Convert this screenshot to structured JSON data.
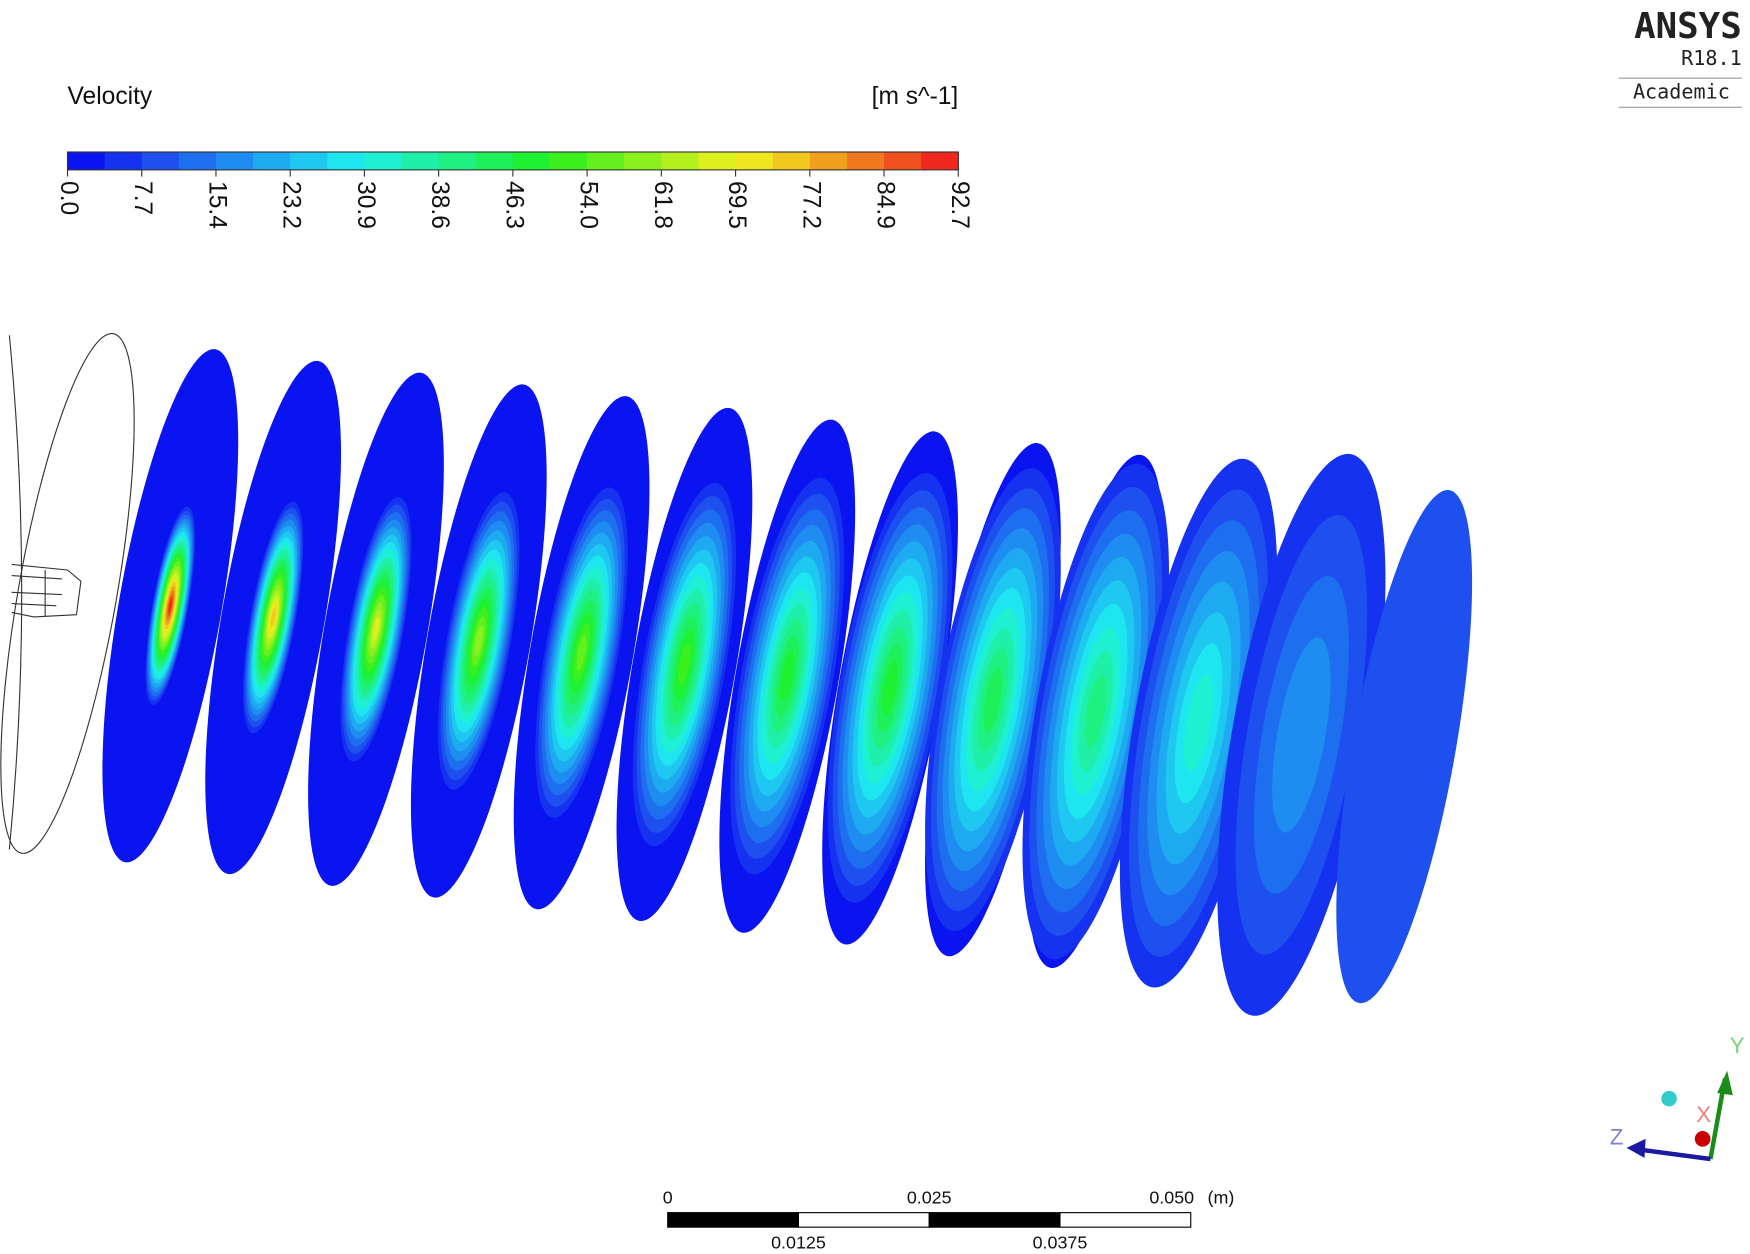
{
  "legend": {
    "title": "Velocity",
    "unit": "[m s^-1]",
    "ticks": [
      "0.0",
      "7.7",
      "15.4",
      "23.2",
      "30.9",
      "38.6",
      "46.3",
      "54.0",
      "61.8",
      "69.5",
      "77.2",
      "84.9",
      "92.7"
    ],
    "colors": [
      "#0a14f0",
      "#1432f0",
      "#1e50f0",
      "#1e6ef0",
      "#1e8cf0",
      "#1eaaf0",
      "#1ec8f0",
      "#1ee6f0",
      "#1ef0d2",
      "#1ef0aa",
      "#1ef082",
      "#1ef05a",
      "#1ef032",
      "#3cf01e",
      "#64f01e",
      "#8cf01e",
      "#b4f01e",
      "#dcf01e",
      "#f0e61e",
      "#f0c81e",
      "#f0a01e",
      "#f0781e",
      "#f0501e",
      "#f0281e"
    ]
  },
  "scale_bar": {
    "top_labels": [
      "0",
      "0.025",
      "0.050"
    ],
    "unit": "(m)",
    "bottom_labels": [
      "0.0125",
      "0.0375"
    ]
  },
  "logo": {
    "name": "ANSYS",
    "version": "R18.1",
    "edition": "Academic"
  },
  "triad": {
    "y": "Y",
    "x": "X",
    "z": "Z"
  }
}
